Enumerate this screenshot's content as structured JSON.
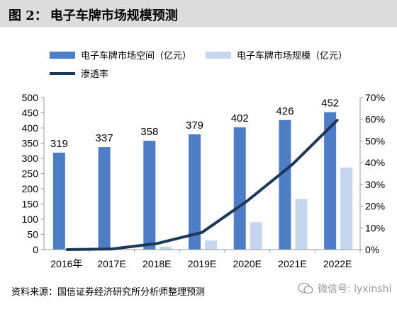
{
  "header": {
    "figure_label": "图 2：",
    "title": "电子车牌市场规模预测"
  },
  "legend": {
    "items": [
      {
        "label": "电子车牌市场空间（亿元）",
        "color": "#4d7ec5",
        "kind": "bar"
      },
      {
        "label": "电子车牌市场规模（亿元）",
        "color": "#c5d6ee",
        "kind": "bar"
      },
      {
        "label": "渗透率",
        "color": "#1f3759",
        "kind": "line"
      }
    ]
  },
  "chart_data": {
    "type": "bar",
    "categories": [
      "2016年",
      "2017E",
      "2018E",
      "2019E",
      "2020E",
      "2021E",
      "2022E"
    ],
    "series": [
      {
        "name": "电子车牌市场空间（亿元）",
        "values": [
          319,
          337,
          358,
          379,
          402,
          426,
          452
        ],
        "color": "#4d7ec5",
        "axis": "left",
        "kind": "bar"
      },
      {
        "name": "电子车牌市场规模（亿元）",
        "values": [
          0,
          1,
          10,
          30,
          90,
          167,
          270
        ],
        "color": "#c5d6ee",
        "axis": "left",
        "kind": "bar"
      },
      {
        "name": "渗透率",
        "values": [
          0.0,
          0.3,
          2.8,
          7.9,
          22.4,
          39.2,
          59.7
        ],
        "color": "#1f3759",
        "axis": "right",
        "kind": "line"
      }
    ],
    "data_labels": [
      "319",
      "337",
      "358",
      "379",
      "402",
      "426",
      "452"
    ],
    "ylim": [
      0,
      500
    ],
    "yticks": [
      "0",
      "50",
      "100",
      "150",
      "200",
      "250",
      "300",
      "350",
      "400",
      "450",
      "500"
    ],
    "y2lim": [
      0,
      70
    ],
    "y2ticks": [
      "0%",
      "10%",
      "20%",
      "30%",
      "40%",
      "50%",
      "60%",
      "70%"
    ],
    "grid": false,
    "legend_position": "top"
  },
  "footer": {
    "source": "资料来源：国信证券经济研究所分析师整理预测",
    "watermark": "微信号: lyxinshi"
  }
}
